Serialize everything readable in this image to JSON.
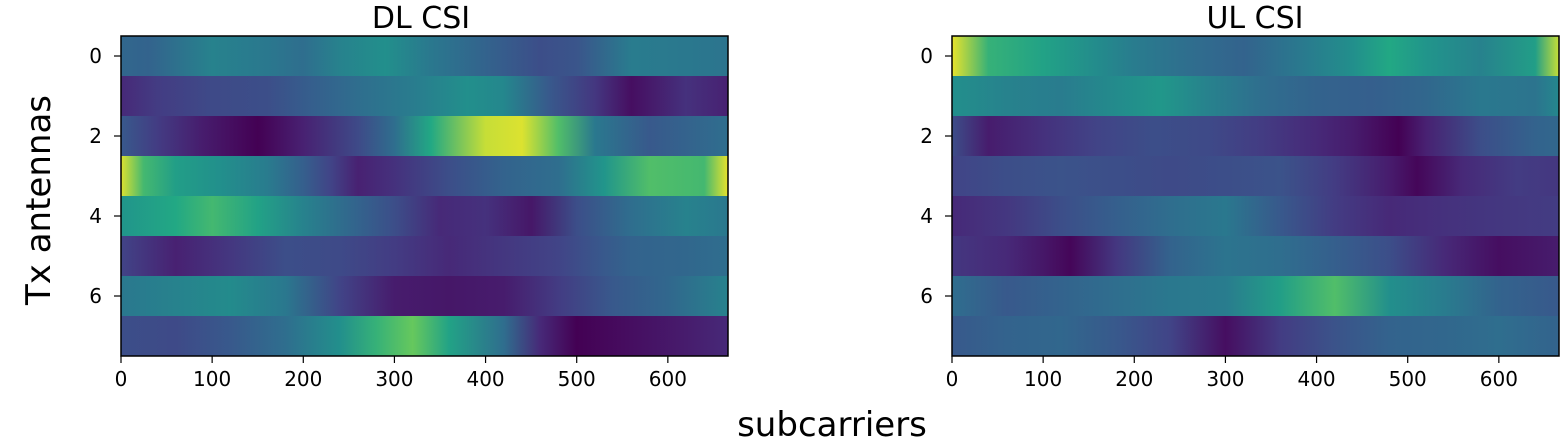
{
  "figure": {
    "ylabel": "Tx antennas",
    "xlabel": "subcarriers"
  },
  "chart_data": [
    {
      "type": "heatmap",
      "title": "DL CSI",
      "colormap": "viridis",
      "x_range": [
        0,
        666
      ],
      "y_range": [
        -0.5,
        7.5
      ],
      "xticks": [
        0,
        100,
        200,
        300,
        400,
        500,
        600
      ],
      "yticks": [
        0,
        2,
        4,
        6
      ],
      "rows": [
        {
          "antenna": 0,
          "profile": [
            [
              0,
              0.42
            ],
            [
              30,
              0.4
            ],
            [
              100,
              0.55
            ],
            [
              160,
              0.5
            ],
            [
              200,
              0.45
            ],
            [
              240,
              0.55
            ],
            [
              290,
              0.62
            ],
            [
              340,
              0.5
            ],
            [
              400,
              0.4
            ],
            [
              460,
              0.3
            ],
            [
              500,
              0.33
            ],
            [
              560,
              0.52
            ],
            [
              620,
              0.5
            ],
            [
              666,
              0.48
            ]
          ]
        },
        {
          "antenna": 1,
          "profile": [
            [
              0,
              0.15
            ],
            [
              40,
              0.22
            ],
            [
              100,
              0.28
            ],
            [
              160,
              0.3
            ],
            [
              210,
              0.38
            ],
            [
              260,
              0.45
            ],
            [
              320,
              0.52
            ],
            [
              380,
              0.62
            ],
            [
              420,
              0.58
            ],
            [
              470,
              0.35
            ],
            [
              520,
              0.2
            ],
            [
              560,
              0.05
            ],
            [
              620,
              0.18
            ],
            [
              666,
              0.12
            ]
          ]
        },
        {
          "antenna": 2,
          "profile": [
            [
              0,
              0.35
            ],
            [
              40,
              0.22
            ],
            [
              90,
              0.1
            ],
            [
              150,
              0.0
            ],
            [
              200,
              0.12
            ],
            [
              260,
              0.28
            ],
            [
              300,
              0.45
            ],
            [
              340,
              0.75
            ],
            [
              400,
              0.95
            ],
            [
              440,
              0.97
            ],
            [
              480,
              0.82
            ],
            [
              520,
              0.5
            ],
            [
              580,
              0.35
            ],
            [
              666,
              0.45
            ]
          ]
        },
        {
          "antenna": 3,
          "profile": [
            [
              0,
              0.97
            ],
            [
              25,
              0.8
            ],
            [
              60,
              0.7
            ],
            [
              110,
              0.62
            ],
            [
              160,
              0.52
            ],
            [
              200,
              0.38
            ],
            [
              230,
              0.25
            ],
            [
              260,
              0.12
            ],
            [
              300,
              0.18
            ],
            [
              360,
              0.3
            ],
            [
              420,
              0.4
            ],
            [
              480,
              0.45
            ],
            [
              530,
              0.65
            ],
            [
              580,
              0.82
            ],
            [
              640,
              0.8
            ],
            [
              666,
              0.98
            ]
          ]
        },
        {
          "antenna": 4,
          "profile": [
            [
              0,
              0.65
            ],
            [
              60,
              0.75
            ],
            [
              100,
              0.8
            ],
            [
              150,
              0.72
            ],
            [
              200,
              0.55
            ],
            [
              260,
              0.4
            ],
            [
              300,
              0.3
            ],
            [
              350,
              0.15
            ],
            [
              400,
              0.18
            ],
            [
              450,
              0.08
            ],
            [
              500,
              0.3
            ],
            [
              560,
              0.45
            ],
            [
              620,
              0.55
            ],
            [
              666,
              0.5
            ]
          ]
        },
        {
          "antenna": 5,
          "profile": [
            [
              0,
              0.25
            ],
            [
              60,
              0.12
            ],
            [
              120,
              0.2
            ],
            [
              180,
              0.3
            ],
            [
              240,
              0.28
            ],
            [
              300,
              0.22
            ],
            [
              360,
              0.15
            ],
            [
              420,
              0.2
            ],
            [
              480,
              0.25
            ],
            [
              530,
              0.35
            ],
            [
              560,
              0.4
            ],
            [
              620,
              0.42
            ],
            [
              666,
              0.45
            ]
          ]
        },
        {
          "antenna": 6,
          "profile": [
            [
              0,
              0.5
            ],
            [
              60,
              0.55
            ],
            [
              120,
              0.6
            ],
            [
              180,
              0.5
            ],
            [
              240,
              0.25
            ],
            [
              300,
              0.1
            ],
            [
              360,
              0.08
            ],
            [
              420,
              0.1
            ],
            [
              480,
              0.22
            ],
            [
              540,
              0.35
            ],
            [
              600,
              0.42
            ],
            [
              666,
              0.55
            ]
          ]
        },
        {
          "antenna": 7,
          "profile": [
            [
              0,
              0.3
            ],
            [
              60,
              0.28
            ],
            [
              120,
              0.35
            ],
            [
              180,
              0.45
            ],
            [
              240,
              0.62
            ],
            [
              280,
              0.78
            ],
            [
              320,
              0.85
            ],
            [
              360,
              0.72
            ],
            [
              420,
              0.45
            ],
            [
              460,
              0.15
            ],
            [
              500,
              0.0
            ],
            [
              560,
              0.05
            ],
            [
              620,
              0.1
            ],
            [
              666,
              0.15
            ]
          ]
        }
      ]
    },
    {
      "type": "heatmap",
      "title": "UL CSI",
      "colormap": "viridis",
      "x_range": [
        0,
        666
      ],
      "y_range": [
        -0.5,
        7.5
      ],
      "xticks": [
        0,
        100,
        200,
        300,
        400,
        500,
        600
      ],
      "yticks": [
        0,
        2,
        4,
        6
      ],
      "rows": [
        {
          "antenna": 0,
          "profile": [
            [
              0,
              0.98
            ],
            [
              40,
              0.78
            ],
            [
              100,
              0.72
            ],
            [
              160,
              0.6
            ],
            [
              200,
              0.52
            ],
            [
              260,
              0.45
            ],
            [
              320,
              0.4
            ],
            [
              380,
              0.5
            ],
            [
              440,
              0.62
            ],
            [
              480,
              0.75
            ],
            [
              520,
              0.65
            ],
            [
              580,
              0.55
            ],
            [
              640,
              0.7
            ],
            [
              666,
              0.95
            ]
          ]
        },
        {
          "antenna": 1,
          "profile": [
            [
              0,
              0.62
            ],
            [
              60,
              0.55
            ],
            [
              120,
              0.52
            ],
            [
              180,
              0.6
            ],
            [
              230,
              0.66
            ],
            [
              280,
              0.55
            ],
            [
              340,
              0.45
            ],
            [
              400,
              0.4
            ],
            [
              460,
              0.38
            ],
            [
              520,
              0.42
            ],
            [
              580,
              0.5
            ],
            [
              640,
              0.48
            ],
            [
              666,
              0.58
            ]
          ]
        },
        {
          "antenna": 2,
          "profile": [
            [
              0,
              0.3
            ],
            [
              40,
              0.1
            ],
            [
              100,
              0.18
            ],
            [
              160,
              0.25
            ],
            [
              220,
              0.3
            ],
            [
              280,
              0.28
            ],
            [
              340,
              0.22
            ],
            [
              400,
              0.15
            ],
            [
              440,
              0.1
            ],
            [
              490,
              0.0
            ],
            [
              520,
              0.12
            ],
            [
              580,
              0.3
            ],
            [
              640,
              0.4
            ],
            [
              666,
              0.42
            ]
          ]
        },
        {
          "antenna": 3,
          "profile": [
            [
              0,
              0.25
            ],
            [
              60,
              0.3
            ],
            [
              120,
              0.32
            ],
            [
              180,
              0.3
            ],
            [
              240,
              0.28
            ],
            [
              300,
              0.3
            ],
            [
              360,
              0.32
            ],
            [
              420,
              0.22
            ],
            [
              480,
              0.1
            ],
            [
              510,
              0.02
            ],
            [
              560,
              0.15
            ],
            [
              620,
              0.22
            ],
            [
              666,
              0.2
            ]
          ]
        },
        {
          "antenna": 4,
          "profile": [
            [
              0,
              0.15
            ],
            [
              60,
              0.2
            ],
            [
              120,
              0.3
            ],
            [
              180,
              0.38
            ],
            [
              240,
              0.45
            ],
            [
              300,
              0.5
            ],
            [
              360,
              0.35
            ],
            [
              420,
              0.22
            ],
            [
              480,
              0.15
            ],
            [
              540,
              0.18
            ],
            [
              600,
              0.2
            ],
            [
              666,
              0.22
            ]
          ]
        },
        {
          "antenna": 5,
          "profile": [
            [
              0,
              0.2
            ],
            [
              60,
              0.15
            ],
            [
              100,
              0.08
            ],
            [
              130,
              0.02
            ],
            [
              180,
              0.2
            ],
            [
              240,
              0.4
            ],
            [
              300,
              0.48
            ],
            [
              360,
              0.45
            ],
            [
              420,
              0.38
            ],
            [
              480,
              0.3
            ],
            [
              540,
              0.15
            ],
            [
              600,
              0.05
            ],
            [
              640,
              0.08
            ],
            [
              666,
              0.1
            ]
          ]
        },
        {
          "antenna": 6,
          "profile": [
            [
              0,
              0.45
            ],
            [
              60,
              0.35
            ],
            [
              120,
              0.4
            ],
            [
              180,
              0.45
            ],
            [
              240,
              0.5
            ],
            [
              300,
              0.52
            ],
            [
              360,
              0.7
            ],
            [
              420,
              0.82
            ],
            [
              480,
              0.62
            ],
            [
              540,
              0.52
            ],
            [
              600,
              0.4
            ],
            [
              666,
              0.35
            ]
          ]
        },
        {
          "antenna": 7,
          "profile": [
            [
              0,
              0.35
            ],
            [
              60,
              0.4
            ],
            [
              120,
              0.42
            ],
            [
              180,
              0.35
            ],
            [
              240,
              0.25
            ],
            [
              300,
              0.05
            ],
            [
              360,
              0.22
            ],
            [
              420,
              0.32
            ],
            [
              480,
              0.4
            ],
            [
              540,
              0.42
            ],
            [
              600,
              0.45
            ],
            [
              666,
              0.4
            ]
          ]
        }
      ]
    }
  ]
}
